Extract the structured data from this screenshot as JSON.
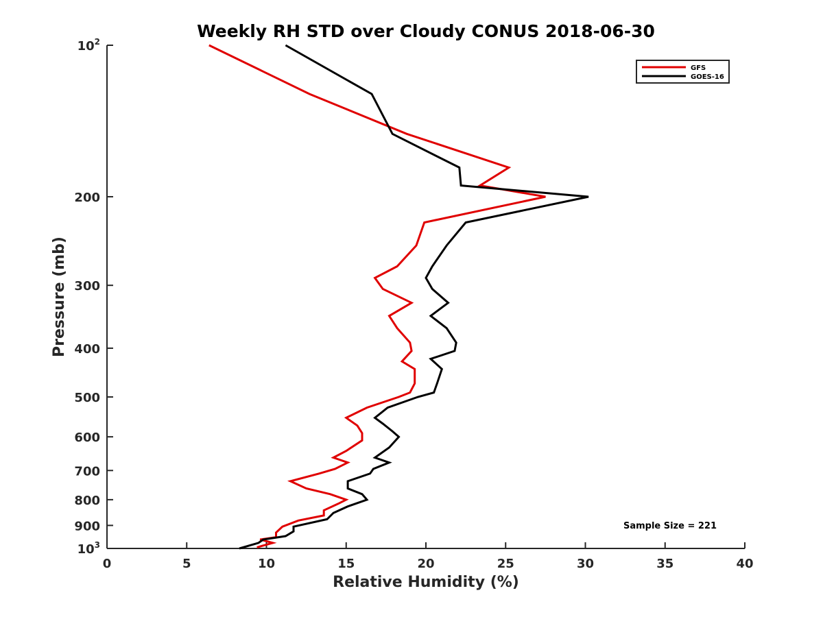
{
  "chart_data": {
    "type": "line",
    "title": "Weekly RH STD over Cloudy CONUS 2018-06-30",
    "xlabel": "Relative Humidity (%)",
    "ylabel": "Pressure (mb)",
    "xlim": [
      0,
      40
    ],
    "ylim": [
      1000,
      100
    ],
    "yscale": "log",
    "yreversed": true,
    "x_ticks": [
      0,
      5,
      10,
      15,
      20,
      25,
      30,
      35,
      40
    ],
    "x_tick_labels": [
      "0",
      "5",
      "10",
      "15",
      "20",
      "25",
      "30",
      "35",
      "40"
    ],
    "y_ticks": [
      {
        "value": 100,
        "base": "10",
        "exp": "2"
      },
      {
        "value": 200,
        "label": "200"
      },
      {
        "value": 300,
        "label": "300"
      },
      {
        "value": 400,
        "label": "400"
      },
      {
        "value": 500,
        "label": "500"
      },
      {
        "value": 600,
        "label": "600"
      },
      {
        "value": 700,
        "label": "700"
      },
      {
        "value": 800,
        "label": "800"
      },
      {
        "value": 900,
        "label": "900"
      },
      {
        "value": 1000,
        "base": "10",
        "exp": "3"
      }
    ],
    "grid": false,
    "legend_position": "top-right",
    "annotation": "Sample Size = 221",
    "series": [
      {
        "name": "GFS",
        "color": "#e00000",
        "points": [
          [
            6.4,
            100
          ],
          [
            12.7,
            125
          ],
          [
            18.8,
            150
          ],
          [
            25.2,
            175
          ],
          [
            23.4,
            190
          ],
          [
            27.5,
            200
          ],
          [
            19.9,
            225
          ],
          [
            19.4,
            250
          ],
          [
            18.2,
            275
          ],
          [
            16.8,
            290
          ],
          [
            17.3,
            305
          ],
          [
            19.1,
            325
          ],
          [
            17.7,
            345
          ],
          [
            18.2,
            365
          ],
          [
            19.0,
            390
          ],
          [
            19.1,
            405
          ],
          [
            18.5,
            425
          ],
          [
            19.3,
            440
          ],
          [
            19.3,
            470
          ],
          [
            19.0,
            490
          ],
          [
            18.3,
            500
          ],
          [
            16.3,
            525
          ],
          [
            15.0,
            550
          ],
          [
            15.7,
            570
          ],
          [
            16.0,
            590
          ],
          [
            16.0,
            610
          ],
          [
            15.0,
            640
          ],
          [
            14.2,
            660
          ],
          [
            15.1,
            675
          ],
          [
            14.3,
            695
          ],
          [
            13.3,
            710
          ],
          [
            11.5,
            735
          ],
          [
            12.5,
            760
          ],
          [
            14.0,
            780
          ],
          [
            15.0,
            800
          ],
          [
            14.5,
            815
          ],
          [
            13.6,
            840
          ],
          [
            13.6,
            860
          ],
          [
            12.0,
            880
          ],
          [
            11.0,
            905
          ],
          [
            10.6,
            930
          ],
          [
            10.6,
            950
          ],
          [
            9.6,
            960
          ],
          [
            10.4,
            975
          ],
          [
            9.4,
            995
          ]
        ]
      },
      {
        "name": "GOES-16",
        "color": "#000000",
        "points": [
          [
            11.2,
            100
          ],
          [
            16.6,
            125
          ],
          [
            17.9,
            150
          ],
          [
            22.1,
            175
          ],
          [
            22.2,
            190
          ],
          [
            30.2,
            200
          ],
          [
            22.5,
            225
          ],
          [
            21.3,
            250
          ],
          [
            20.4,
            275
          ],
          [
            20.0,
            290
          ],
          [
            20.4,
            305
          ],
          [
            21.4,
            325
          ],
          [
            20.3,
            345
          ],
          [
            21.3,
            365
          ],
          [
            21.9,
            390
          ],
          [
            21.8,
            405
          ],
          [
            20.3,
            420
          ],
          [
            21.0,
            440
          ],
          [
            20.7,
            470
          ],
          [
            20.5,
            490
          ],
          [
            19.5,
            500
          ],
          [
            17.6,
            525
          ],
          [
            16.8,
            550
          ],
          [
            17.3,
            565
          ],
          [
            17.9,
            585
          ],
          [
            18.3,
            600
          ],
          [
            17.7,
            630
          ],
          [
            16.8,
            660
          ],
          [
            17.7,
            675
          ],
          [
            16.7,
            695
          ],
          [
            16.5,
            710
          ],
          [
            15.1,
            735
          ],
          [
            15.1,
            760
          ],
          [
            16.0,
            780
          ],
          [
            16.3,
            800
          ],
          [
            15.1,
            825
          ],
          [
            14.2,
            850
          ],
          [
            13.8,
            875
          ],
          [
            11.7,
            905
          ],
          [
            11.7,
            925
          ],
          [
            11.2,
            945
          ],
          [
            9.8,
            960
          ],
          [
            9.5,
            975
          ],
          [
            8.3,
            1000
          ]
        ]
      }
    ]
  }
}
